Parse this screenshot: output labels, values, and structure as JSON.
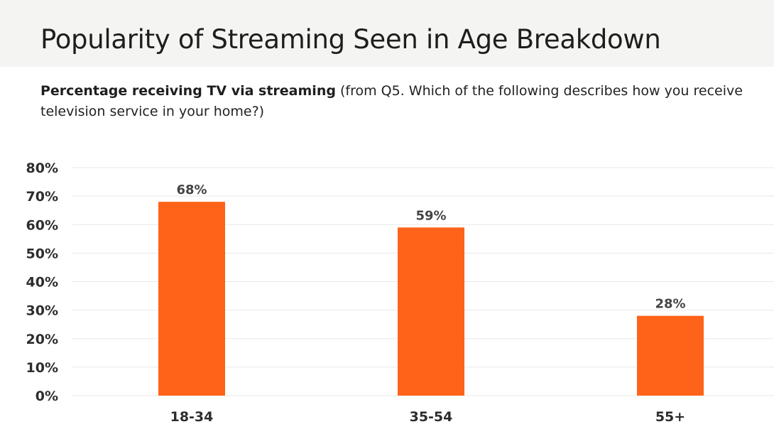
{
  "header": {
    "title": "Popularity of Streaming Seen in Age Breakdown"
  },
  "subtitle": {
    "strong": "Percentage receiving TV via streaming",
    "rest": " (from Q5. Which of the following describes how you receive television service in your home?)"
  },
  "colors": {
    "bar": "#ff6319",
    "title_band": "#f4f4f2"
  },
  "chart_data": {
    "type": "bar",
    "title": "",
    "xlabel": "",
    "ylabel": "",
    "categories": [
      "18-34",
      "35-54",
      "55+"
    ],
    "series": [
      {
        "values": [
          68,
          59,
          28
        ],
        "data_labels": [
          "68%",
          "59%",
          "28%"
        ]
      }
    ],
    "ylim": [
      0,
      80
    ],
    "yticks": [
      0,
      10,
      20,
      30,
      40,
      50,
      60,
      70,
      80
    ],
    "ytick_labels": [
      "0%",
      "10%",
      "20%",
      "30%",
      "40%",
      "50%",
      "60%",
      "70%",
      "80%"
    ],
    "grid": true,
    "legend": "none"
  }
}
